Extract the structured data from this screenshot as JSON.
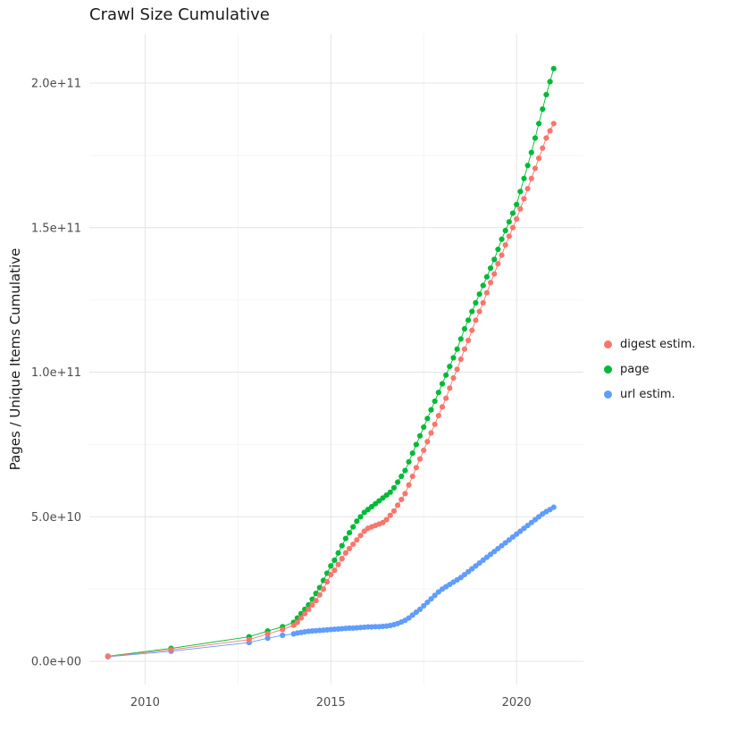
{
  "title": "Crawl Size Cumulative",
  "chart_data": {
    "type": "scatter",
    "title": "Crawl Size Cumulative",
    "xlabel": "",
    "ylabel": "Pages / Unique Items Cumulative",
    "grid": true,
    "legend_position": "right",
    "y_unit": "counts, stored here in units of 1e9 (billions)",
    "xlim": [
      2008.5,
      2021.8
    ],
    "ylim_e9": [
      -8,
      217
    ],
    "x_ticks": [
      {
        "v": 2010,
        "label": "2010"
      },
      {
        "v": 2015,
        "label": "2015"
      },
      {
        "v": 2020,
        "label": "2020"
      }
    ],
    "y_ticks": [
      {
        "v": 0,
        "label": "0.0e+00"
      },
      {
        "v": 50,
        "label": "5.0e+10"
      },
      {
        "v": 100,
        "label": "1.0e+11"
      },
      {
        "v": 150,
        "label": "1.5e+11"
      },
      {
        "v": 200,
        "label": "2.0e+11"
      }
    ],
    "x_minor": [
      2012.5,
      2017.5
    ],
    "y_minor_e9": [
      25,
      75,
      125,
      175
    ],
    "x": [
      2009.0,
      2010.7,
      2012.8,
      2013.3,
      2013.7,
      2014.0,
      2014.1,
      2014.2,
      2014.3,
      2014.4,
      2014.5,
      2014.6,
      2014.7,
      2014.8,
      2014.9,
      2015.0,
      2015.1,
      2015.2,
      2015.3,
      2015.4,
      2015.5,
      2015.6,
      2015.7,
      2015.8,
      2015.9,
      2016.0,
      2016.1,
      2016.2,
      2016.3,
      2016.4,
      2016.5,
      2016.6,
      2016.7,
      2016.8,
      2016.9,
      2017.0,
      2017.1,
      2017.2,
      2017.3,
      2017.4,
      2017.5,
      2017.6,
      2017.7,
      2017.8,
      2017.9,
      2018.0,
      2018.1,
      2018.2,
      2018.3,
      2018.4,
      2018.5,
      2018.6,
      2018.7,
      2018.8,
      2018.9,
      2019.0,
      2019.1,
      2019.2,
      2019.3,
      2019.4,
      2019.5,
      2019.6,
      2019.7,
      2019.8,
      2019.9,
      2020.0,
      2020.1,
      2020.2,
      2020.3,
      2020.4,
      2020.5,
      2020.6,
      2020.7,
      2020.8,
      2020.9,
      2021.0
    ],
    "series": [
      {
        "name": "digest estim.",
        "color": "#F8766D",
        "y_e9": [
          1.7,
          4.0,
          7.5,
          9.5,
          11,
          12.5,
          13.5,
          15,
          16.5,
          18,
          19.5,
          21,
          23,
          25,
          27.5,
          30,
          31.5,
          33.5,
          35.5,
          37.5,
          39,
          40.5,
          42,
          43.5,
          45,
          46,
          46.5,
          47,
          47.5,
          48,
          49,
          50.5,
          52,
          54,
          56,
          58,
          61,
          64,
          67,
          70,
          73,
          76,
          79,
          82,
          85,
          88,
          91,
          94.5,
          98,
          101,
          104.5,
          108,
          111,
          114.5,
          118,
          121,
          124,
          127.5,
          131,
          134,
          137.5,
          140.5,
          144,
          147,
          150,
          153,
          156.5,
          160,
          163.5,
          167,
          170.5,
          174,
          177.5,
          181,
          183.5,
          186
        ]
      },
      {
        "name": "page",
        "color": "#00BA38",
        "y_e9": [
          1.8,
          4.5,
          8.5,
          10.5,
          12,
          13.5,
          15,
          16.5,
          18,
          19.5,
          21.5,
          23.5,
          25.5,
          28,
          30.5,
          33,
          35,
          37.5,
          40,
          42.5,
          44.5,
          46.5,
          48.5,
          50,
          51.5,
          52.5,
          53.5,
          54.5,
          55.5,
          56.5,
          57.5,
          58.5,
          60,
          62,
          64,
          66,
          69,
          72,
          75,
          78,
          81,
          84,
          87,
          90,
          93,
          96,
          99,
          102,
          105,
          108,
          111.5,
          115,
          118,
          121,
          124,
          127,
          130,
          133,
          136,
          139,
          142.5,
          146,
          149,
          152,
          155,
          158,
          162.5,
          167,
          171.5,
          176,
          181,
          186,
          191,
          196,
          200.5,
          205
        ]
      },
      {
        "name": "url estim.",
        "color": "#619CFF",
        "y_e9": [
          1.6,
          3.5,
          6.5,
          8,
          9,
          9.5,
          9.8,
          10,
          10.2,
          10.4,
          10.5,
          10.6,
          10.7,
          10.8,
          10.9,
          11,
          11.1,
          11.2,
          11.3,
          11.4,
          11.5,
          11.5,
          11.6,
          11.7,
          11.8,
          11.9,
          11.9,
          12,
          12,
          12.1,
          12.2,
          12.4,
          12.7,
          13.1,
          13.6,
          14.2,
          15,
          16,
          17,
          18,
          19.2,
          20.4,
          21.6,
          22.8,
          24,
          25,
          25.8,
          26.6,
          27.4,
          28.2,
          29,
          30,
          31,
          32,
          33,
          34,
          35,
          36,
          37,
          38,
          39,
          40,
          41,
          42,
          43,
          44,
          45,
          46,
          47,
          48,
          49,
          50,
          51,
          51.8,
          52.5,
          53.3
        ]
      }
    ],
    "colors": {
      "grid_major": "#E4E4E4",
      "grid_minor": "#F3F3F3",
      "tick_label": "#4D4D4D",
      "text": "#1a1a1a",
      "background": "#FFFFFF"
    }
  }
}
